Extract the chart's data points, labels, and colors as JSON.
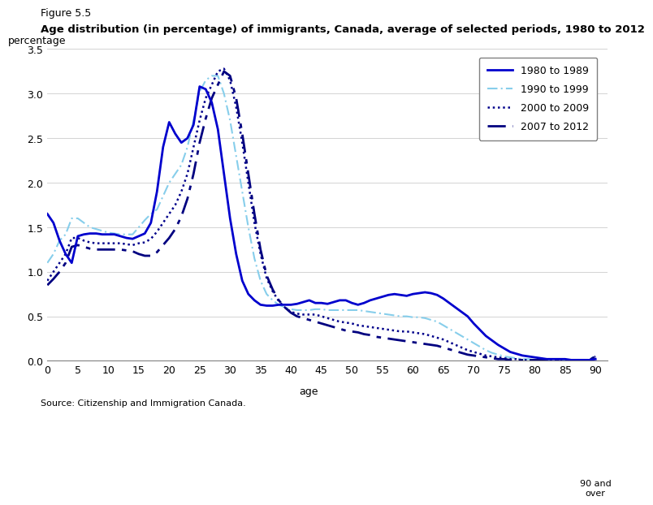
{
  "figure_label": "Figure 5.5",
  "title": "Age distribution (in percentage) of immigrants, Canada, average of selected periods, 1980 to 2012",
  "ylabel": "percentage",
  "xlabel": "age",
  "source": "Source: Citizenship and Immigration Canada.",
  "ylim": [
    0.0,
    3.5
  ],
  "yticks": [
    0.0,
    0.5,
    1.0,
    1.5,
    2.0,
    2.5,
    3.0,
    3.5
  ],
  "xticks": [
    0,
    5,
    10,
    15,
    20,
    25,
    30,
    35,
    40,
    45,
    50,
    55,
    60,
    65,
    70,
    75,
    80,
    85,
    90
  ],
  "xlim": [
    0,
    92
  ],
  "series": {
    "1980 to 1989": {
      "color": "#0000CD",
      "linestyle": "solid",
      "linewidth": 2.0,
      "x": [
        0,
        1,
        2,
        3,
        4,
        5,
        6,
        7,
        8,
        9,
        10,
        11,
        12,
        13,
        14,
        15,
        16,
        17,
        18,
        19,
        20,
        21,
        22,
        23,
        24,
        25,
        26,
        27,
        28,
        29,
        30,
        31,
        32,
        33,
        34,
        35,
        36,
        37,
        38,
        39,
        40,
        41,
        42,
        43,
        44,
        45,
        46,
        47,
        48,
        49,
        50,
        51,
        52,
        53,
        54,
        55,
        56,
        57,
        58,
        59,
        60,
        61,
        62,
        63,
        64,
        65,
        66,
        67,
        68,
        69,
        70,
        71,
        72,
        73,
        74,
        75,
        76,
        77,
        78,
        79,
        80,
        81,
        82,
        83,
        84,
        85,
        86,
        87,
        88,
        89,
        90
      ],
      "y": [
        1.65,
        1.55,
        1.35,
        1.2,
        1.1,
        1.4,
        1.42,
        1.43,
        1.43,
        1.42,
        1.42,
        1.42,
        1.4,
        1.38,
        1.37,
        1.4,
        1.43,
        1.55,
        1.9,
        2.4,
        2.68,
        2.55,
        2.45,
        2.5,
        2.65,
        3.08,
        3.05,
        2.9,
        2.6,
        2.1,
        1.6,
        1.2,
        0.9,
        0.75,
        0.68,
        0.63,
        0.62,
        0.62,
        0.63,
        0.63,
        0.63,
        0.64,
        0.66,
        0.68,
        0.65,
        0.65,
        0.64,
        0.66,
        0.68,
        0.68,
        0.65,
        0.63,
        0.65,
        0.68,
        0.7,
        0.72,
        0.74,
        0.75,
        0.74,
        0.73,
        0.75,
        0.76,
        0.77,
        0.76,
        0.74,
        0.7,
        0.65,
        0.6,
        0.55,
        0.5,
        0.42,
        0.35,
        0.28,
        0.23,
        0.18,
        0.14,
        0.1,
        0.08,
        0.06,
        0.05,
        0.04,
        0.03,
        0.02,
        0.02,
        0.02,
        0.02,
        0.01,
        0.01,
        0.01,
        0.01,
        0.02
      ]
    },
    "1990 to 1999": {
      "color": "#87CEEB",
      "linestyle": "dashdot",
      "linewidth": 1.5,
      "x": [
        0,
        1,
        2,
        3,
        4,
        5,
        6,
        7,
        8,
        9,
        10,
        11,
        12,
        13,
        14,
        15,
        16,
        17,
        18,
        19,
        20,
        21,
        22,
        23,
        24,
        25,
        26,
        27,
        28,
        29,
        30,
        31,
        32,
        33,
        34,
        35,
        36,
        37,
        38,
        39,
        40,
        41,
        42,
        43,
        44,
        45,
        46,
        47,
        48,
        49,
        50,
        51,
        52,
        53,
        54,
        55,
        56,
        57,
        58,
        59,
        60,
        61,
        62,
        63,
        64,
        65,
        66,
        67,
        68,
        69,
        70,
        71,
        72,
        73,
        74,
        75,
        76,
        77,
        78,
        79,
        80,
        81,
        82,
        83,
        84,
        85,
        86,
        87,
        88,
        89,
        90
      ],
      "y": [
        1.1,
        1.2,
        1.35,
        1.42,
        1.6,
        1.6,
        1.55,
        1.5,
        1.48,
        1.46,
        1.44,
        1.43,
        1.42,
        1.42,
        1.42,
        1.5,
        1.58,
        1.65,
        1.7,
        1.85,
        2.0,
        2.1,
        2.2,
        2.4,
        2.7,
        3.02,
        3.15,
        3.2,
        3.2,
        3.0,
        2.7,
        2.3,
        1.9,
        1.5,
        1.15,
        0.9,
        0.75,
        0.68,
        0.63,
        0.6,
        0.58,
        0.57,
        0.57,
        0.57,
        0.58,
        0.58,
        0.57,
        0.57,
        0.57,
        0.57,
        0.57,
        0.57,
        0.56,
        0.55,
        0.54,
        0.53,
        0.52,
        0.51,
        0.5,
        0.5,
        0.49,
        0.49,
        0.48,
        0.46,
        0.44,
        0.4,
        0.36,
        0.32,
        0.28,
        0.24,
        0.2,
        0.16,
        0.12,
        0.09,
        0.07,
        0.05,
        0.04,
        0.03,
        0.02,
        0.02,
        0.01,
        0.01,
        0.01,
        0.01,
        0.01,
        0.01,
        0.01,
        0.01,
        0.01,
        0.01,
        0.07
      ]
    },
    "2000 to 2009": {
      "color": "#00008B",
      "linestyle": "dotted",
      "linewidth": 1.8,
      "x": [
        0,
        1,
        2,
        3,
        4,
        5,
        6,
        7,
        8,
        9,
        10,
        11,
        12,
        13,
        14,
        15,
        16,
        17,
        18,
        19,
        20,
        21,
        22,
        23,
        24,
        25,
        26,
        27,
        28,
        29,
        30,
        31,
        32,
        33,
        34,
        35,
        36,
        37,
        38,
        39,
        40,
        41,
        42,
        43,
        44,
        45,
        46,
        47,
        48,
        49,
        50,
        51,
        52,
        53,
        54,
        55,
        56,
        57,
        58,
        59,
        60,
        61,
        62,
        63,
        64,
        65,
        66,
        67,
        68,
        69,
        70,
        71,
        72,
        73,
        74,
        75,
        76,
        77,
        78,
        79,
        80,
        81,
        82,
        83,
        84,
        85,
        86,
        87,
        88,
        89,
        90
      ],
      "y": [
        0.9,
        1.0,
        1.1,
        1.2,
        1.38,
        1.38,
        1.35,
        1.33,
        1.32,
        1.32,
        1.32,
        1.32,
        1.32,
        1.31,
        1.3,
        1.32,
        1.33,
        1.37,
        1.45,
        1.55,
        1.65,
        1.75,
        1.9,
        2.1,
        2.4,
        2.7,
        2.95,
        3.1,
        3.25,
        3.28,
        3.15,
        2.85,
        2.45,
        2.0,
        1.55,
        1.2,
        0.93,
        0.78,
        0.67,
        0.6,
        0.55,
        0.53,
        0.52,
        0.52,
        0.52,
        0.5,
        0.48,
        0.46,
        0.44,
        0.43,
        0.42,
        0.4,
        0.39,
        0.38,
        0.37,
        0.36,
        0.35,
        0.34,
        0.33,
        0.33,
        0.32,
        0.31,
        0.3,
        0.28,
        0.26,
        0.24,
        0.21,
        0.18,
        0.15,
        0.12,
        0.1,
        0.08,
        0.06,
        0.05,
        0.04,
        0.03,
        0.02,
        0.02,
        0.01,
        0.01,
        0.01,
        0.01,
        0.01,
        0.01,
        0.01,
        0.01,
        0.01,
        0.01,
        0.01,
        0.01,
        0.05
      ]
    },
    "2007 to 2012": {
      "color": "#000080",
      "linestyle": "dashdot",
      "linewidth": 2.0,
      "dashes": [
        8,
        3,
        2,
        3
      ],
      "x": [
        0,
        1,
        2,
        3,
        4,
        5,
        6,
        7,
        8,
        9,
        10,
        11,
        12,
        13,
        14,
        15,
        16,
        17,
        18,
        19,
        20,
        21,
        22,
        23,
        24,
        25,
        26,
        27,
        28,
        29,
        30,
        31,
        32,
        33,
        34,
        35,
        36,
        37,
        38,
        39,
        40,
        41,
        42,
        43,
        44,
        45,
        46,
        47,
        48,
        49,
        50,
        51,
        52,
        53,
        54,
        55,
        56,
        57,
        58,
        59,
        60,
        61,
        62,
        63,
        64,
        65,
        66,
        67,
        68,
        69,
        70,
        71,
        72,
        73,
        74,
        75,
        76,
        77,
        78,
        79,
        80,
        81,
        82,
        83,
        84,
        85,
        86,
        87,
        88,
        89,
        90
      ],
      "y": [
        0.85,
        0.92,
        1.0,
        1.1,
        1.28,
        1.3,
        1.28,
        1.26,
        1.25,
        1.25,
        1.25,
        1.25,
        1.25,
        1.24,
        1.23,
        1.2,
        1.18,
        1.18,
        1.22,
        1.3,
        1.38,
        1.48,
        1.62,
        1.82,
        2.1,
        2.45,
        2.72,
        2.95,
        3.1,
        3.25,
        3.2,
        2.95,
        2.55,
        2.1,
        1.65,
        1.25,
        0.96,
        0.8,
        0.68,
        0.6,
        0.54,
        0.5,
        0.48,
        0.46,
        0.44,
        0.42,
        0.4,
        0.38,
        0.36,
        0.34,
        0.33,
        0.32,
        0.3,
        0.29,
        0.27,
        0.26,
        0.25,
        0.24,
        0.23,
        0.22,
        0.21,
        0.2,
        0.19,
        0.18,
        0.17,
        0.15,
        0.13,
        0.11,
        0.09,
        0.07,
        0.06,
        0.05,
        0.04,
        0.03,
        0.02,
        0.02,
        0.01,
        0.01,
        0.01,
        0.01,
        0.01,
        0.01,
        0.01,
        0.01,
        0.01,
        0.01,
        0.01,
        0.01,
        0.01,
        0.01,
        0.05
      ]
    }
  }
}
